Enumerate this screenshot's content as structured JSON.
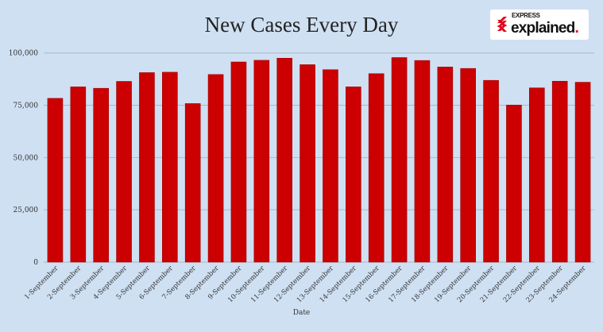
{
  "chart_data": {
    "type": "bar",
    "title": "New Cases Every Day",
    "xlabel": "Date",
    "ylabel": "",
    "ylim": [
      0,
      100000
    ],
    "yticks": [
      0,
      25000,
      50000,
      75000,
      100000
    ],
    "ytick_labels": [
      "0",
      "25,000",
      "50,000",
      "75,000",
      "100,000"
    ],
    "grid": "horizontal",
    "bar_color": "#cc0000",
    "categories": [
      "1-September",
      "2-September",
      "3-September",
      "4-September",
      "5-September",
      "6-September",
      "7-September",
      "8-September",
      "9-September",
      "10-September",
      "11-September",
      "12-September",
      "13-September",
      "14-September",
      "15-September",
      "16-September",
      "17-September",
      "18-September",
      "19-September",
      "20-September",
      "21-September",
      "22-September",
      "23-September",
      "24-September"
    ],
    "values": [
      78300,
      83800,
      83100,
      86400,
      90600,
      90800,
      75800,
      89700,
      95700,
      96500,
      97500,
      94400,
      92000,
      83800,
      90100,
      97800,
      96400,
      93300,
      92600,
      86900,
      75100,
      83300,
      86500,
      86000
    ]
  },
  "logo": {
    "top": "EXPRESS",
    "main": "explained",
    "dot": "."
  },
  "background": "#cfe0f3"
}
